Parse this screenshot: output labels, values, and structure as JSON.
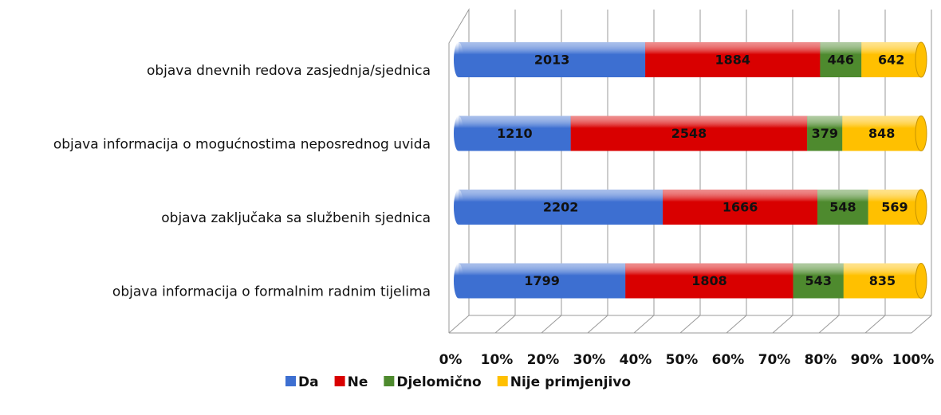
{
  "chart_data": {
    "type": "bar",
    "orientation": "horizontal",
    "stacking": "percent",
    "categories": [
      "objava dnevnih redova zasjednja/sjednica",
      "objava informacija o mogućnostima neposrednog uvida",
      "objava zaključaka sa službenih sjednica",
      "objava informacija o formalnim radnim tijelima"
    ],
    "series": [
      {
        "name": "Da",
        "color": "#3d6fd1",
        "values": [
          2013,
          1210,
          2202,
          1799
        ]
      },
      {
        "name": "Ne",
        "color": "#d90000",
        "values": [
          1884,
          2548,
          1666,
          1808
        ]
      },
      {
        "name": "Djelomično",
        "color": "#4e8a2e",
        "values": [
          446,
          379,
          548,
          543
        ]
      },
      {
        "name": "Nije primjenjivo",
        "color": "#ffc000",
        "values": [
          642,
          848,
          569,
          835
        ]
      }
    ],
    "xlim": [
      0,
      100
    ],
    "xticks": [
      {
        "value": 0,
        "label": "0%"
      },
      {
        "value": 10,
        "label": "10%"
      },
      {
        "value": 20,
        "label": "20%"
      },
      {
        "value": 30,
        "label": "30%"
      },
      {
        "value": 40,
        "label": "40%"
      },
      {
        "value": 50,
        "label": "50%"
      },
      {
        "value": 60,
        "label": "60%"
      },
      {
        "value": 70,
        "label": "70%"
      },
      {
        "value": 80,
        "label": "80%"
      },
      {
        "value": 90,
        "label": "90%"
      },
      {
        "value": 100,
        "label": "100%"
      }
    ],
    "grid": true,
    "legend": "bottom"
  }
}
